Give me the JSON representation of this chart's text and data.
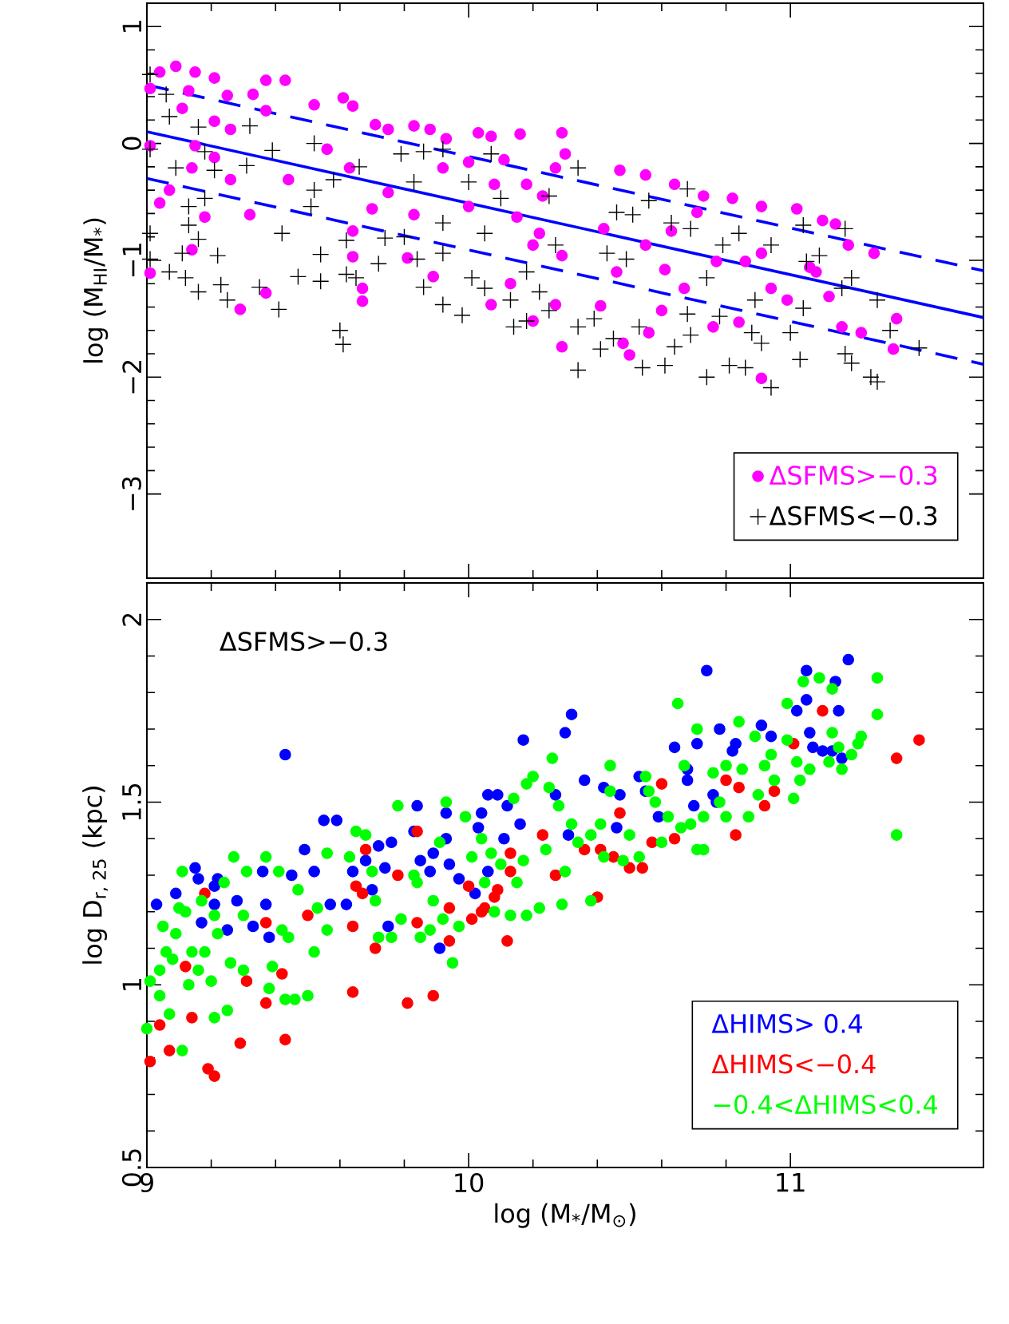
{
  "chart_data": [
    {
      "type": "scatter",
      "xlim": [
        9,
        11.6
      ],
      "ylim": [
        -3.72,
        1.2
      ],
      "xticks": [
        9,
        10,
        11
      ],
      "yticks": [
        {
          "value": -3,
          "label": "−3"
        },
        {
          "value": -2,
          "label": "−2"
        },
        {
          "value": -1,
          "label": "−1"
        },
        0,
        1
      ],
      "ylabel": "log (M$_{HI}$/M$_{*}$)",
      "tick_labels": "y",
      "legend": "bottom right",
      "series": [
        {
          "name": "ΔSFMS>−0.3",
          "color": "#ff00ff",
          "marker": "circle",
          "x": [
            9.09,
            9.04,
            9.15,
            9.21,
            9.01,
            9.13,
            9.37,
            9.43,
            9.25,
            9.33,
            9.37,
            9.11,
            9.21,
            9.26,
            9.01,
            9.15,
            9.21,
            9.14,
            9.07,
            9.04,
            9.18,
            9.14,
            9.01,
            9.29,
            9.37,
            9.32,
            9.26,
            9.44,
            9.52,
            9.61,
            9.64,
            9.56,
            9.63,
            9.64,
            9.64,
            9.67,
            9.67,
            9.71,
            9.75,
            9.83,
            9.88,
            9.7,
            9.75,
            9.83,
            9.89,
            9.81,
            9.93,
            9.92,
            10.03,
            10.07,
            10.16,
            10.29,
            10.3,
            10.11,
            10.0,
            10.18,
            10.23,
            10.27,
            10.08,
            10.0,
            10.15,
            10.22,
            10.29,
            10.2,
            10.07,
            10.2,
            10.27,
            10.29,
            10.13,
            10.47,
            10.55,
            10.64,
            10.73,
            10.82,
            10.91,
            11.02,
            11.1,
            11.14,
            11.18,
            11.26,
            10.42,
            10.46,
            10.41,
            10.48,
            10.5,
            10.56,
            10.6,
            10.61,
            10.55,
            10.67,
            10.77,
            10.76,
            10.84,
            10.86,
            10.91,
            10.94,
            10.99,
            11.06,
            11.08,
            11.12,
            11.16,
            11.22,
            11.33,
            11.32,
            10.91,
            10.71,
            10.63
          ],
          "values": [
            0.66,
            0.61,
            0.61,
            0.56,
            0.47,
            0.45,
            0.54,
            0.54,
            0.41,
            0.42,
            0.28,
            0.3,
            0.19,
            0.12,
            -0.02,
            -0.02,
            -0.12,
            -0.21,
            -0.4,
            -0.51,
            -0.63,
            -0.91,
            -1.11,
            -1.42,
            -1.28,
            -0.61,
            -0.31,
            -0.31,
            0.33,
            0.39,
            0.32,
            -0.05,
            -0.21,
            -0.75,
            -0.97,
            -1.24,
            -1.35,
            0.16,
            0.12,
            0.15,
            0.12,
            -0.56,
            -0.42,
            -0.61,
            -1.14,
            -0.98,
            0.04,
            -0.21,
            0.09,
            0.06,
            0.08,
            0.09,
            -0.09,
            -0.14,
            -0.16,
            -0.35,
            -0.45,
            -0.21,
            -0.35,
            -0.54,
            -0.63,
            -0.77,
            -0.96,
            -0.87,
            -1.38,
            -1.52,
            -1.38,
            -1.74,
            -1.2,
            -0.23,
            -0.27,
            -0.35,
            -0.45,
            -0.47,
            -0.54,
            -0.56,
            -0.66,
            -0.69,
            -0.87,
            -0.94,
            -0.73,
            -1.1,
            -1.39,
            -1.71,
            -1.81,
            -1.62,
            -1.43,
            -1.08,
            -0.87,
            -1.24,
            -1.01,
            -1.57,
            -1.53,
            -1.01,
            -0.94,
            -1.24,
            -1.34,
            -1.06,
            -1.1,
            -1.31,
            -1.57,
            -1.62,
            -1.5,
            -1.76,
            -2.01,
            -0.59,
            -0.75
          ]
        },
        {
          "name": "ΔSFMS<−0.3",
          "color": "#000000",
          "marker": "cross",
          "x": [
            9.01,
            9.06,
            9.07,
            9.16,
            9.32,
            9.39,
            9.01,
            9.18,
            9.09,
            9.21,
            9.31,
            9.13,
            9.18,
            9.13,
            9.01,
            9.16,
            9.11,
            9.22,
            9.01,
            9.07,
            9.12,
            9.16,
            9.23,
            9.25,
            9.35,
            9.41,
            9.47,
            9.54,
            9.6,
            9.61,
            9.62,
            9.65,
            9.62,
            9.54,
            9.52,
            9.52,
            9.51,
            9.42,
            9.58,
            9.66,
            9.74,
            9.72,
            9.8,
            9.84,
            9.86,
            9.92,
            9.98,
            9.92,
            9.92,
            9.83,
            9.79,
            9.86,
            9.92,
            10.07,
            10.0,
            10.1,
            10.05,
            10.01,
            10.05,
            10.13,
            10.14,
            10.18,
            10.22,
            10.25,
            10.18,
            10.25,
            10.34,
            10.27,
            10.34,
            10.34,
            10.39,
            10.41,
            10.45,
            10.43,
            10.46,
            10.51,
            10.49,
            10.53,
            10.54,
            10.61,
            10.64,
            10.68,
            10.69,
            10.56,
            10.63,
            10.68,
            10.69,
            10.74,
            10.78,
            10.74,
            10.81,
            10.86,
            10.79,
            10.84,
            10.89,
            10.88,
            10.91,
            10.94,
            10.94,
            11.0,
            11.03,
            11.04,
            11.05,
            11.04,
            11.09,
            11.16,
            11.17,
            11.19,
            11.17,
            11.19,
            11.25,
            11.27,
            11.27,
            11.31,
            11.4
          ],
          "values": [
            0.59,
            0.42,
            0.23,
            0.14,
            0.15,
            -0.06,
            -0.05,
            -0.07,
            -0.21,
            -0.23,
            -0.19,
            -0.54,
            -0.47,
            -0.7,
            -0.77,
            -0.82,
            -0.94,
            -0.96,
            -0.99,
            -1.1,
            -1.15,
            -1.27,
            -1.21,
            -1.34,
            -1.23,
            -1.42,
            -1.14,
            -1.18,
            -1.6,
            -1.72,
            -1.12,
            -1.15,
            -0.83,
            -0.95,
            -0.4,
            0.0,
            -0.54,
            -0.77,
            -0.31,
            -0.2,
            -0.81,
            -1.03,
            -0.8,
            -0.99,
            -1.23,
            -1.38,
            -1.47,
            -0.94,
            -0.68,
            -0.33,
            -0.09,
            -0.07,
            -0.05,
            -0.09,
            -0.33,
            -0.47,
            -0.77,
            -1.15,
            -1.24,
            -1.34,
            -1.57,
            -1.52,
            -1.27,
            -1.43,
            -1.1,
            -0.45,
            -0.21,
            -0.87,
            -1.57,
            -1.94,
            -1.5,
            -1.76,
            -1.67,
            -0.94,
            -0.59,
            -0.61,
            -0.99,
            -1.57,
            -1.92,
            -1.9,
            -1.74,
            -1.46,
            -1.64,
            -0.49,
            -0.68,
            -0.39,
            -0.73,
            -1.15,
            -1.48,
            -2.0,
            -1.9,
            -1.92,
            -0.87,
            -0.77,
            -1.34,
            -1.62,
            -1.71,
            -2.09,
            -0.87,
            -1.62,
            -1.85,
            -1.41,
            -1.01,
            -0.7,
            -0.96,
            -1.24,
            -0.73,
            -1.15,
            -1.8,
            -1.88,
            -2.0,
            -2.04,
            -1.34,
            -1.6,
            -1.75
          ]
        },
        {
          "type": "line",
          "color": "#0000ff",
          "line_style": "solid",
          "x": [
            9,
            11.6
          ],
          "values": [
            0.1,
            -1.49
          ]
        },
        {
          "type": "line",
          "color": "#0000ff",
          "line_style": "dashed",
          "x": [
            9,
            11.6
          ],
          "values": [
            0.5,
            -1.09
          ]
        },
        {
          "type": "line",
          "color": "#0000ff",
          "line_style": "dashed",
          "x": [
            9,
            11.6
          ],
          "values": [
            -0.3,
            -1.89
          ]
        }
      ]
    },
    {
      "type": "scatter",
      "xlim": [
        9,
        11.6
      ],
      "ylim": [
        0.5,
        2.1
      ],
      "xticks": [
        9,
        10,
        11
      ],
      "yticks": [
        0.5,
        1,
        1.5,
        2
      ],
      "xlabel": "log (M$_{*}$/M$_{⊙}$)",
      "ylabel": "log D$_{r, 25}$ (kpc)",
      "legend": "bottom right",
      "annotations": [
        "ΔSFMS>−0.3"
      ],
      "series": [
        {
          "name": "ΔHIMS> 0.4",
          "color": "#0000ff",
          "marker": "circle",
          "x": [
            9.03,
            9.09,
            9.15,
            9.16,
            9.21,
            9.22,
            9.21,
            9.28,
            9.17,
            9.25,
            9.33,
            9.36,
            9.37,
            9.38,
            9.43,
            9.45,
            9.49,
            9.52,
            9.55,
            9.59,
            9.57,
            9.62,
            9.64,
            9.68,
            9.7,
            9.72,
            9.76,
            9.74,
            9.75,
            9.84,
            9.83,
            9.85,
            9.88,
            9.89,
            9.91,
            9.93,
            9.93,
            9.94,
            9.97,
            10.03,
            10.04,
            10.06,
            10.09,
            10.02,
            10.06,
            10.08,
            10.11,
            10.12,
            10.16,
            10.17,
            10.27,
            10.3,
            10.32,
            10.31,
            10.36,
            10.42,
            10.47,
            10.46,
            10.53,
            10.55,
            10.59,
            10.64,
            10.68,
            10.68,
            10.71,
            10.7,
            10.74,
            10.76,
            10.77,
            10.78,
            10.82,
            10.83,
            10.91,
            10.94,
            11.02,
            11.05,
            11.05,
            11.06,
            11.07,
            11.09,
            11.1,
            11.13,
            11.14,
            11.15,
            11.16,
            11.18
          ],
          "values": [
            1.22,
            1.25,
            1.32,
            1.29,
            1.27,
            1.29,
            1.22,
            1.23,
            1.17,
            1.15,
            1.16,
            1.31,
            1.22,
            1.13,
            1.63,
            1.3,
            1.37,
            1.31,
            1.45,
            1.45,
            1.22,
            1.22,
            1.31,
            1.34,
            1.26,
            1.38,
            1.39,
            1.32,
            1.16,
            1.49,
            1.42,
            1.34,
            1.31,
            1.36,
            1.1,
            1.4,
            1.47,
            1.33,
            1.29,
            1.43,
            1.47,
            1.52,
            1.52,
            1.25,
            1.31,
            null,
            1.4,
            1.49,
            1.44,
            1.67,
            1.52,
            1.69,
            1.74,
            1.41,
            1.56,
            1.54,
            1.52,
            1.43,
            1.57,
            1.53,
            1.46,
            1.65,
            1.59,
            1.56,
            1.66,
            1.49,
            1.86,
            1.52,
            1.5,
            1.7,
            1.64,
            1.66,
            1.71,
            1.68,
            1.75,
            1.78,
            1.86,
            1.69,
            1.65,
            null,
            1.64,
            1.64,
            1.83,
            1.75,
            1.62,
            1.89
          ]
        },
        {
          "name": "ΔHIMS<−0.4",
          "color": "#ff0000",
          "marker": "circle",
          "x": [
            9.01,
            9.04,
            9.07,
            9.12,
            9.14,
            9.18,
            9.19,
            9.21,
            9.29,
            9.31,
            9.37,
            9.37,
            9.42,
            9.43,
            9.5,
            9.64,
            9.64,
            9.65,
            9.67,
            9.68,
            9.71,
            9.78,
            9.81,
            9.84,
            9.84,
            9.89,
            9.94,
            9.94,
            10.0,
            10.01,
            10.04,
            10.05,
            10.08,
            10.09,
            10.12,
            10.13,
            10.13,
            10.23,
            10.27,
            10.36,
            10.4,
            10.41,
            10.45,
            10.47,
            10.5,
            10.54,
            10.57,
            10.6,
            10.64,
            10.77,
            10.8,
            10.83,
            10.84,
            10.92,
            10.95,
            11.01,
            11.1,
            11.33,
            11.4
          ],
          "values": [
            0.79,
            0.89,
            0.82,
            1.05,
            0.91,
            1.25,
            0.77,
            0.75,
            0.84,
            1.01,
            0.95,
            1.17,
            1.03,
            0.85,
            1.19,
            0.98,
            1.16,
            1.27,
            1.25,
            1.37,
            1.1,
            1.3,
            0.95,
            1.17,
            1.42,
            0.97,
            1.21,
            1.12,
            1.27,
            1.18,
            1.2,
            1.21,
            1.24,
            1.26,
            1.12,
            1.36,
            1.31,
            1.41,
            1.3,
            1.37,
            1.24,
            1.37,
            1.35,
            1.47,
            1.32,
            1.32,
            1.39,
            1.55,
            1.4,
            null,
            1.56,
            1.41,
            1.54,
            1.49,
            1.53,
            1.66,
            1.75,
            1.62,
            1.67
          ]
        },
        {
          "name": "−0.4<ΔHIMS<0.4",
          "color": "#00ff00",
          "marker": "circle",
          "x": [
            9.0,
            9.01,
            9.04,
            9.04,
            9.05,
            9.06,
            9.07,
            9.08,
            9.09,
            9.1,
            9.11,
            9.11,
            9.12,
            9.13,
            9.14,
            9.16,
            9.17,
            9.18,
            9.2,
            9.21,
            9.21,
            9.22,
            9.24,
            9.25,
            9.26,
            9.27,
            9.3,
            9.3,
            9.31,
            9.37,
            9.38,
            9.39,
            9.41,
            9.42,
            9.43,
            9.44,
            9.46,
            9.47,
            9.5,
            9.52,
            9.53,
            9.56,
            9.56,
            9.63,
            9.65,
            9.68,
            9.7,
            9.71,
            9.72,
            9.76,
            9.78,
            9.79,
            9.83,
            9.84,
            9.85,
            9.88,
            9.89,
            9.91,
            9.92,
            9.93,
            9.95,
            9.97,
            9.99,
            10.01,
            10.04,
            10.05,
            10.07,
            10.08,
            10.1,
            10.13,
            10.14,
            10.15,
            10.17,
            10.18,
            10.18,
            10.2,
            10.22,
            10.24,
            10.25,
            10.26,
            10.28,
            10.3,
            10.29,
            10.32,
            10.34,
            10.38,
            10.38,
            10.41,
            10.42,
            10.44,
            10.44,
            10.48,
            10.5,
            10.53,
            10.55,
            10.56,
            10.58,
            10.6,
            10.62,
            10.65,
            10.66,
            10.67,
            10.69,
            10.71,
            10.71,
            10.73,
            10.73,
            10.76,
            10.78,
            10.8,
            10.8,
            10.84,
            10.85,
            10.87,
            10.89,
            10.9,
            10.92,
            10.94,
            10.95,
            10.99,
            10.99,
            11.01,
            11.02,
            11.03,
            11.04,
            11.06,
            11.09,
            11.12,
            11.13,
            11.13,
            11.15,
            11.16,
            11.19,
            11.21,
            11.22,
            11.27,
            11.27,
            11.33
          ],
          "values": [
            0.88,
            1.01,
            0.97,
            1.04,
            1.16,
            1.09,
            0.92,
            1.07,
            1.14,
            1.21,
            0.82,
            1.31,
            1.2,
            1.0,
            1.09,
            1.04,
            1.23,
            1.09,
            1.01,
            0.91,
            1.19,
            1.14,
            1.28,
            0.93,
            1.06,
            1.35,
            1.19,
            1.04,
            1.31,
            1.35,
            0.99,
            1.05,
            1.31,
            1.15,
            0.96,
            1.13,
            0.96,
            1.26,
            0.97,
            1.09,
            1.21,
            1.36,
            1.15,
            1.35,
            1.42,
            1.41,
            1.31,
            1.23,
            1.13,
            1.13,
            1.49,
            1.18,
            1.3,
            1.28,
            1.13,
            1.15,
            1.23,
            1.39,
            1.18,
            1.5,
            1.06,
            1.16,
            1.46,
            1.35,
            1.4,
            1.28,
            1.36,
            1.2,
            1.33,
            1.19,
            1.51,
            1.28,
            1.34,
            1.19,
            1.55,
            1.57,
            1.21,
            1.37,
            1.54,
            1.62,
            1.49,
            1.31,
            1.22,
            1.44,
            1.39,
            1.23,
            1.41,
            1.44,
            1.35,
            1.6,
            1.53,
            1.34,
            1.41,
            1.35,
            1.57,
            1.53,
            1.5,
            1.39,
            1.46,
            1.77,
            1.43,
            1.6,
            1.44,
            1.37,
            1.7,
            1.37,
            1.46,
            1.58,
            1.5,
            1.6,
            1.46,
            1.72,
            1.59,
            1.46,
            1.68,
            1.52,
            1.6,
            1.63,
            1.56,
            1.67,
            1.77,
            1.51,
            1.61,
            1.56,
            1.83,
            1.59,
            1.84,
            1.61,
            1.81,
            1.69,
            1.65,
            1.59,
            1.63,
            1.66,
            1.68,
            1.84,
            1.74,
            1.41
          ]
        }
      ]
    }
  ]
}
